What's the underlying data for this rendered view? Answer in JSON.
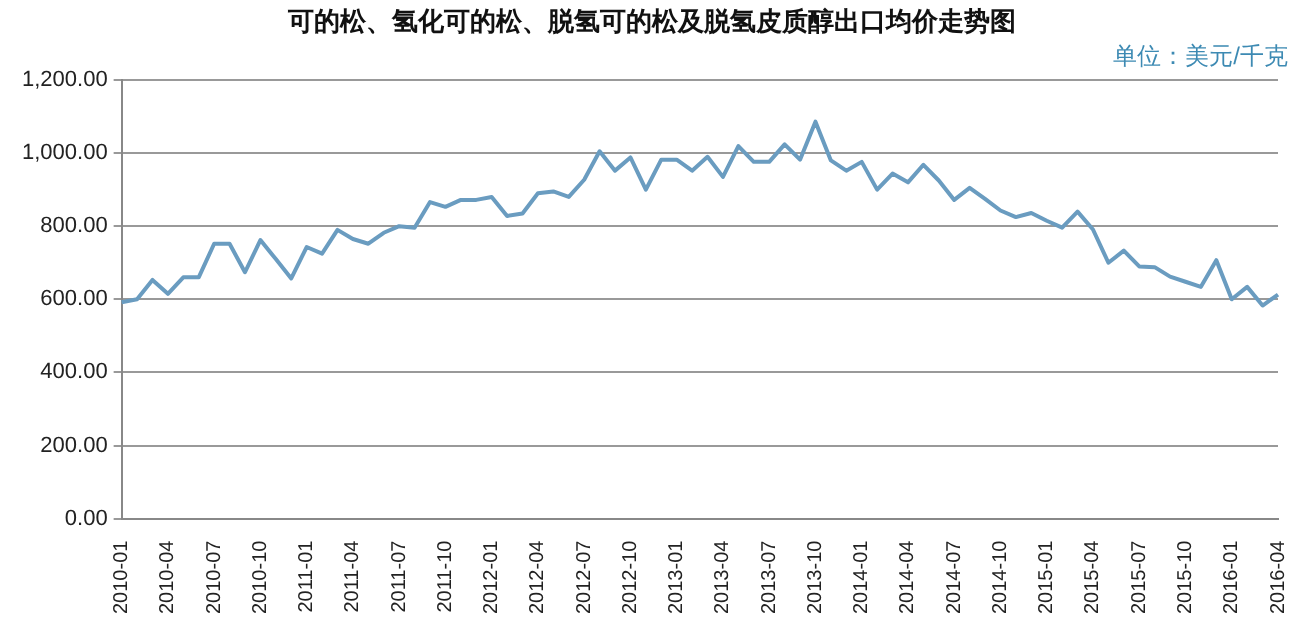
{
  "chart_data": {
    "type": "line",
    "title": "可的松、氢化可的松、脱氢可的松及脱氢皮质醇出口均价走势图",
    "subtitle": "单位：美元/千克",
    "categories": [
      "2010-01",
      null,
      null,
      "2010-04",
      null,
      null,
      "2010-07",
      null,
      null,
      "2010-10",
      null,
      null,
      "2011-01",
      null,
      null,
      "2011-04",
      null,
      null,
      "2011-07",
      null,
      null,
      "2011-10",
      null,
      null,
      "2012-01",
      null,
      null,
      "2012-04",
      null,
      null,
      "2012-07",
      null,
      null,
      "2012-10",
      null,
      null,
      "2013-01",
      null,
      null,
      "2013-04",
      null,
      null,
      "2013-07",
      null,
      null,
      "2013-10",
      null,
      null,
      "2014-01",
      null,
      null,
      "2014-04",
      null,
      null,
      "2014-07",
      null,
      null,
      "2014-10",
      null,
      null,
      "2015-01",
      null,
      null,
      "2015-04",
      null,
      null,
      "2015-07",
      null,
      null,
      "2015-10",
      null,
      null,
      "2016-01",
      null,
      null,
      "2016-04"
    ],
    "series": [
      {
        "color": "#6a9cc0",
        "values": [
          592,
          600,
          653,
          615,
          660,
          660,
          752,
          752,
          674,
          762,
          710,
          657,
          743,
          725,
          790,
          765,
          752,
          782,
          800,
          796,
          866,
          853,
          872,
          872,
          880,
          828,
          835,
          890,
          895,
          880,
          927,
          1005,
          952,
          988,
          900,
          982,
          982,
          952,
          990,
          935,
          1019,
          976,
          976,
          1024,
          982,
          1086,
          980,
          952,
          976,
          900,
          944,
          920,
          968,
          925,
          872,
          905,
          875,
          843,
          825,
          836,
          815,
          796,
          840,
          791,
          700,
          733,
          690,
          688,
          662,
          648,
          634,
          707,
          600,
          634,
          583,
          613
        ]
      }
    ],
    "ylim": [
      0,
      1200
    ],
    "yticks": [
      {
        "value": 0,
        "label": "0.00"
      },
      {
        "value": 200,
        "label": "200.00"
      },
      {
        "value": 400,
        "label": "400.00"
      },
      {
        "value": 600,
        "label": "600.00"
      },
      {
        "value": 800,
        "label": "800.00"
      },
      {
        "value": 1000,
        "label": "1,000.00"
      },
      {
        "value": 1200,
        "label": "1,200.00"
      }
    ],
    "grid": "y",
    "marker": "none",
    "line_style": "solid",
    "legend": false
  }
}
